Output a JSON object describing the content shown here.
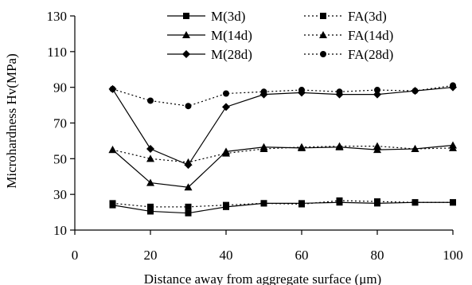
{
  "chart_data": {
    "type": "line",
    "xlabel": "Distance away from aggregate surface (μm)",
    "ylabel": "Microhardness Hv(MPa)",
    "xlim": [
      0,
      100
    ],
    "ylim": [
      10,
      130
    ],
    "xticks": [
      "0",
      "20",
      "40",
      "60",
      "80",
      "100"
    ],
    "yticks": [
      "10",
      "30",
      "50",
      "70",
      "90",
      "110",
      "130"
    ],
    "grid": false,
    "legend_position": "top-right",
    "series": [
      {
        "name": "M(3d)",
        "line": "solid",
        "marker": "square",
        "x": [
          10,
          20,
          30,
          40,
          50,
          60,
          70,
          80,
          90,
          100
        ],
        "y": [
          24,
          20.5,
          19.5,
          23,
          25,
          25,
          25.5,
          25,
          25.5,
          25.5
        ]
      },
      {
        "name": "M(14d)",
        "line": "solid",
        "marker": "triangle",
        "x": [
          10,
          20,
          30,
          40,
          50,
          60,
          70,
          80,
          90,
          100
        ],
        "y": [
          55,
          36.5,
          34,
          54,
          56.5,
          56,
          56.5,
          55,
          55.5,
          57.5
        ]
      },
      {
        "name": "M(28d)",
        "line": "solid",
        "marker": "diamond",
        "x": [
          10,
          20,
          30,
          40,
          50,
          60,
          70,
          80,
          90,
          100
        ],
        "y": [
          89,
          55.5,
          46.5,
          79,
          86,
          87,
          86,
          86,
          88,
          90
        ]
      },
      {
        "name": "FA(3d)",
        "line": "dotted",
        "marker": "square",
        "x": [
          10,
          20,
          30,
          40,
          50,
          60,
          70,
          80,
          90,
          100
        ],
        "y": [
          25,
          23,
          23,
          24,
          25,
          24.5,
          26.5,
          26,
          25.5,
          25.5
        ]
      },
      {
        "name": "FA(14d)",
        "line": "dotted",
        "marker": "triangle",
        "x": [
          10,
          20,
          30,
          40,
          50,
          60,
          70,
          80,
          90,
          100
        ],
        "y": [
          55,
          50,
          48,
          53,
          55.5,
          56.5,
          57,
          57,
          55.5,
          56
        ]
      },
      {
        "name": "FA(28d)",
        "line": "dotted",
        "marker": "circle",
        "x": [
          10,
          20,
          30,
          40,
          50,
          60,
          70,
          80,
          90,
          100
        ],
        "y": [
          89,
          82.5,
          79.5,
          86.5,
          87.5,
          88.5,
          87.5,
          88.5,
          88,
          91
        ]
      }
    ]
  }
}
